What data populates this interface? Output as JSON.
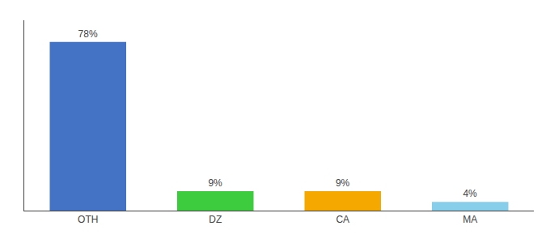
{
  "chart_data": {
    "type": "bar",
    "categories": [
      "OTH",
      "DZ",
      "CA",
      "MA"
    ],
    "values": [
      78,
      9,
      9,
      4
    ],
    "value_labels": [
      "78%",
      "9%",
      "9%",
      "4%"
    ],
    "colors": [
      "#4472c4",
      "#3dcc3d",
      "#f5a800",
      "#87ceeb"
    ],
    "ylim": [
      0,
      88
    ],
    "data_labels": true,
    "tick_labels": "x",
    "grid": false
  }
}
